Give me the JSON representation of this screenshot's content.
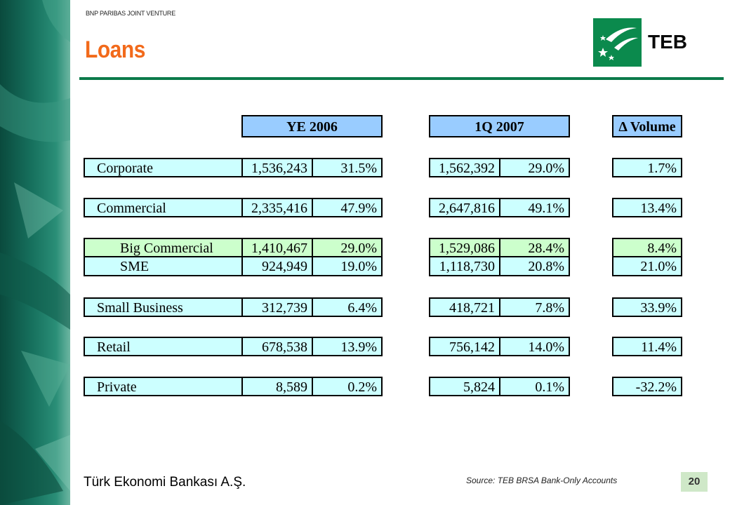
{
  "header": {
    "joint_venture": "BNP PARIBAS JOINT VENTURE",
    "title": "Loans",
    "logo_text": "TEB"
  },
  "table": {
    "col_headers": [
      "YE 2006",
      "1Q 2007",
      "Δ Volume"
    ],
    "rows": [
      {
        "label": "Corporate",
        "ye2006_value": "1,536,243",
        "ye2006_pct": "31.5%",
        "q12007_value": "1,562,392",
        "q12007_pct": "29.0%",
        "delta": "1.7%"
      },
      {
        "label": "Commercial",
        "ye2006_value": "2,335,416",
        "ye2006_pct": "47.9%",
        "q12007_value": "2,647,816",
        "q12007_pct": "49.1%",
        "delta": "13.4%"
      },
      {
        "label": "Big Commercial",
        "ye2006_value": "1,410,467",
        "ye2006_pct": "29.0%",
        "q12007_value": "1,529,086",
        "q12007_pct": "28.4%",
        "delta": "8.4%"
      },
      {
        "label": "SME",
        "ye2006_value": "924,949",
        "ye2006_pct": "19.0%",
        "q12007_value": "1,118,730",
        "q12007_pct": "20.8%",
        "delta": "21.0%"
      },
      {
        "label": "Small Business",
        "ye2006_value": "312,739",
        "ye2006_pct": "6.4%",
        "q12007_value": "418,721",
        "q12007_pct": "7.8%",
        "delta": "33.9%"
      },
      {
        "label": "Retail",
        "ye2006_value": "678,538",
        "ye2006_pct": "13.9%",
        "q12007_value": "756,142",
        "q12007_pct": "14.0%",
        "delta": "11.4%"
      },
      {
        "label": "Private",
        "ye2006_value": "8,589",
        "ye2006_pct": "0.2%",
        "q12007_value": "5,824",
        "q12007_pct": "0.1%",
        "delta": "-32.2%"
      }
    ]
  },
  "footer": {
    "source": "Source: TEB BRSA Bank-Only Accounts",
    "company": "Türk Ekonomi Bankası A.Ş.",
    "page_number": "20"
  },
  "colors": {
    "title": "#f26a1b",
    "rule": "#0b7a4a",
    "logo": "#0b8a4d",
    "row_fill": "#ccffff",
    "sub_row_fill": "#ccffcc",
    "header_fill": "#99ccff"
  }
}
